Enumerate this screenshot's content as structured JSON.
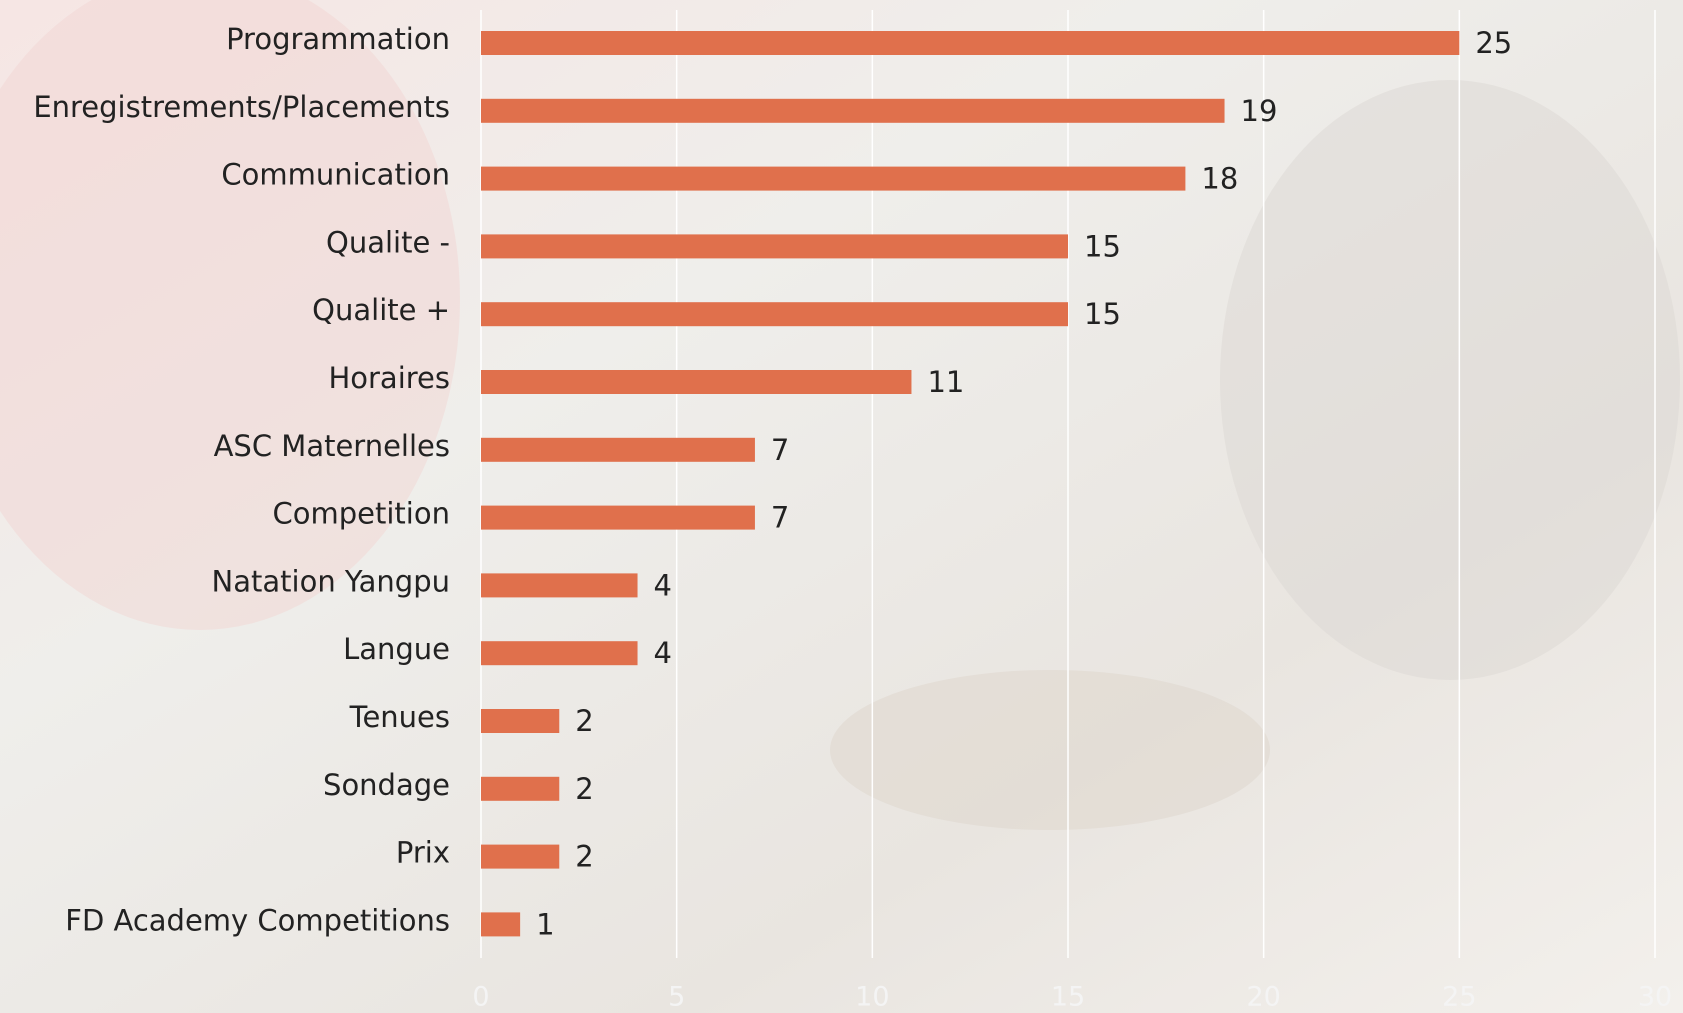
{
  "chart_data": {
    "type": "bar",
    "orientation": "horizontal",
    "categories": [
      "Programmation",
      "Enregistrements/Placements",
      "Communication",
      "Qualite -",
      "Qualite +",
      "Horaires",
      "ASC Maternelles",
      "Competition",
      "Natation Yangpu",
      "Langue",
      "Tenues",
      "Sondage",
      "Prix",
      "FD Academy Competitions"
    ],
    "values": [
      25,
      19,
      18,
      15,
      15,
      11,
      7,
      7,
      4,
      4,
      2,
      2,
      2,
      1
    ],
    "color": "#e0704c",
    "xlim": [
      0,
      30
    ],
    "xticks": [
      0,
      5,
      10,
      15,
      20,
      25,
      30
    ],
    "grid": true
  }
}
